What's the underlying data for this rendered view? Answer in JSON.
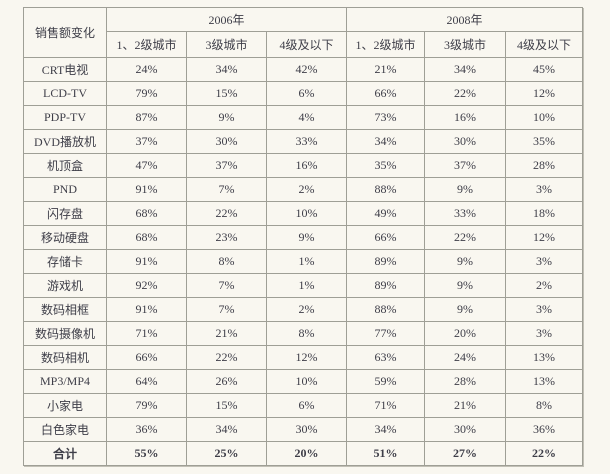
{
  "table": {
    "corner_header": "销售额变化",
    "groups": [
      {
        "label": "2006年"
      },
      {
        "label": "2008年"
      }
    ],
    "sub_headers": [
      "1、2级城市",
      "3级城市",
      "4级及以下"
    ],
    "rows": [
      {
        "label": "CRT电视",
        "values": [
          "24%",
          "34%",
          "42%",
          "21%",
          "34%",
          "45%"
        ]
      },
      {
        "label": "LCD-TV",
        "values": [
          "79%",
          "15%",
          "6%",
          "66%",
          "22%",
          "12%"
        ]
      },
      {
        "label": "PDP-TV",
        "values": [
          "87%",
          "9%",
          "4%",
          "73%",
          "16%",
          "10%"
        ]
      },
      {
        "label": "DVD播放机",
        "values": [
          "37%",
          "30%",
          "33%",
          "34%",
          "30%",
          "35%"
        ]
      },
      {
        "label": "机顶盒",
        "values": [
          "47%",
          "37%",
          "16%",
          "35%",
          "37%",
          "28%"
        ]
      },
      {
        "label": "PND",
        "values": [
          "91%",
          "7%",
          "2%",
          "88%",
          "9%",
          "3%"
        ]
      },
      {
        "label": "闪存盘",
        "values": [
          "68%",
          "22%",
          "10%",
          "49%",
          "33%",
          "18%"
        ]
      },
      {
        "label": "移动硬盘",
        "values": [
          "68%",
          "23%",
          "9%",
          "66%",
          "22%",
          "12%"
        ]
      },
      {
        "label": "存储卡",
        "values": [
          "91%",
          "8%",
          "1%",
          "89%",
          "9%",
          "3%"
        ]
      },
      {
        "label": "游戏机",
        "values": [
          "92%",
          "7%",
          "1%",
          "89%",
          "9%",
          "2%"
        ]
      },
      {
        "label": "数码相框",
        "values": [
          "91%",
          "7%",
          "2%",
          "88%",
          "9%",
          "3%"
        ]
      },
      {
        "label": "数码摄像机",
        "values": [
          "71%",
          "21%",
          "8%",
          "77%",
          "20%",
          "3%"
        ]
      },
      {
        "label": "数码相机",
        "values": [
          "66%",
          "22%",
          "12%",
          "63%",
          "24%",
          "13%"
        ]
      },
      {
        "label": "MP3/MP4",
        "values": [
          "64%",
          "26%",
          "10%",
          "59%",
          "28%",
          "13%"
        ]
      },
      {
        "label": "小家电",
        "values": [
          "79%",
          "15%",
          "6%",
          "71%",
          "21%",
          "8%"
        ]
      },
      {
        "label": "白色家电",
        "values": [
          "36%",
          "34%",
          "30%",
          "34%",
          "30%",
          "36%"
        ]
      },
      {
        "label": "合计",
        "values": [
          "55%",
          "25%",
          "20%",
          "51%",
          "27%",
          "22%"
        ],
        "bold": true
      }
    ]
  },
  "chart_data": {
    "type": "table",
    "title": "销售额变化",
    "unit": "%",
    "column_groups": [
      "2006年",
      "2008年"
    ],
    "columns": [
      "2006年 1、2级城市",
      "2006年 3级城市",
      "2006年 4级及以下",
      "2008年 1、2级城市",
      "2008年 3级城市",
      "2008年 4级及以下"
    ],
    "rows": [
      {
        "label": "CRT电视",
        "values": [
          24,
          34,
          42,
          21,
          34,
          45
        ]
      },
      {
        "label": "LCD-TV",
        "values": [
          79,
          15,
          6,
          66,
          22,
          12
        ]
      },
      {
        "label": "PDP-TV",
        "values": [
          87,
          9,
          4,
          73,
          16,
          10
        ]
      },
      {
        "label": "DVD播放机",
        "values": [
          37,
          30,
          33,
          34,
          30,
          35
        ]
      },
      {
        "label": "机顶盒",
        "values": [
          47,
          37,
          16,
          35,
          37,
          28
        ]
      },
      {
        "label": "PND",
        "values": [
          91,
          7,
          2,
          88,
          9,
          3
        ]
      },
      {
        "label": "闪存盘",
        "values": [
          68,
          22,
          10,
          49,
          33,
          18
        ]
      },
      {
        "label": "移动硬盘",
        "values": [
          68,
          23,
          9,
          66,
          22,
          12
        ]
      },
      {
        "label": "存储卡",
        "values": [
          91,
          8,
          1,
          89,
          9,
          3
        ]
      },
      {
        "label": "游戏机",
        "values": [
          92,
          7,
          1,
          89,
          9,
          2
        ]
      },
      {
        "label": "数码相框",
        "values": [
          91,
          7,
          2,
          88,
          9,
          3
        ]
      },
      {
        "label": "数码摄像机",
        "values": [
          71,
          21,
          8,
          77,
          20,
          3
        ]
      },
      {
        "label": "数码相机",
        "values": [
          66,
          22,
          12,
          63,
          24,
          13
        ]
      },
      {
        "label": "MP3/MP4",
        "values": [
          64,
          26,
          10,
          59,
          28,
          13
        ]
      },
      {
        "label": "小家电",
        "values": [
          79,
          15,
          6,
          71,
          21,
          8
        ]
      },
      {
        "label": "白色家电",
        "values": [
          36,
          34,
          30,
          34,
          30,
          36
        ]
      },
      {
        "label": "合计",
        "values": [
          55,
          25,
          20,
          51,
          27,
          22
        ]
      }
    ]
  }
}
